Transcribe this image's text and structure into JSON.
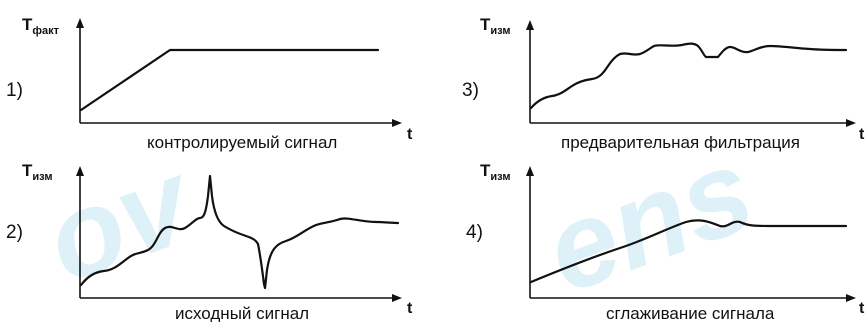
{
  "watermark_text": "ovens",
  "panels": [
    {
      "number": "1)",
      "y_label_main": "T",
      "y_label_sub": "факт",
      "x_label": "t",
      "caption": "контролируемый сигнал",
      "curve": "ramp-then-plateau"
    },
    {
      "number": "2)",
      "y_label_main": "T",
      "y_label_sub": "изм",
      "x_label": "t",
      "caption": "исходный сигнал",
      "curve": "noisy-with-spikes"
    },
    {
      "number": "3)",
      "y_label_main": "T",
      "y_label_sub": "изм",
      "x_label": "t",
      "caption": "предварительная фильтрация",
      "curve": "prefiltered"
    },
    {
      "number": "4)",
      "y_label_main": "T",
      "y_label_sub": "изм",
      "x_label": "t",
      "caption": "сглаживание сигнала",
      "curve": "smoothed"
    }
  ]
}
